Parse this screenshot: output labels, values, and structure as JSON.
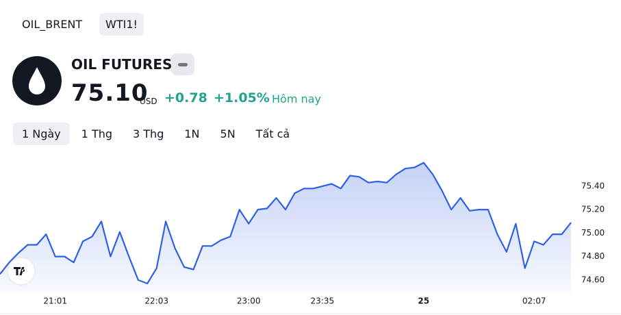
{
  "tabs": [
    "OIL_BRENT",
    "WTI1!"
  ],
  "header": {
    "name": "OIL FUTURES",
    "price": "75.10",
    "currency": "USD",
    "change": "+0.78",
    "change_percent": "+1.05%",
    "period": "Hôm nay"
  },
  "ranges": [
    "1 Ngày",
    "1 Thg",
    "3 Thg",
    "1N",
    "5N",
    "Tất cả"
  ],
  "chart_data": {
    "type": "line",
    "categories": [
      null,
      null,
      null,
      null,
      null,
      null,
      "21:01",
      null,
      null,
      null,
      null,
      null,
      null,
      null,
      null,
      null,
      null,
      "22:03",
      null,
      null,
      null,
      null,
      null,
      null,
      null,
      null,
      null,
      "23:00",
      null,
      null,
      null,
      null,
      null,
      null,
      null,
      "23:35",
      null,
      null,
      null,
      null,
      null,
      null,
      null,
      null,
      null,
      null,
      "25",
      null,
      null,
      null,
      null,
      null,
      null,
      null,
      null,
      null,
      null,
      null,
      "02:07",
      null,
      null,
      null,
      null
    ],
    "series": [
      {
        "color": "#2f5fe3",
        "values": [
          74.65,
          74.75,
          74.83,
          74.9,
          74.9,
          74.99,
          74.8,
          74.8,
          74.75,
          74.93,
          74.97,
          75.1,
          74.8,
          75.01,
          74.8,
          74.6,
          74.57,
          74.7,
          75.1,
          74.87,
          74.71,
          74.69,
          74.89,
          74.89,
          74.94,
          74.97,
          75.2,
          75.08,
          75.2,
          75.21,
          75.3,
          75.2,
          75.34,
          75.38,
          75.38,
          75.4,
          75.42,
          75.38,
          75.49,
          75.48,
          75.43,
          75.44,
          75.43,
          75.5,
          75.55,
          75.56,
          75.6,
          75.5,
          75.36,
          75.2,
          75.3,
          75.19,
          75.2,
          75.2,
          74.99,
          74.84,
          75.08,
          74.7,
          74.93,
          74.9,
          74.99,
          74.99,
          75.09
        ]
      }
    ],
    "ylim": [
      74.5,
      75.7
    ],
    "yticks": [
      {
        "value": 74.6,
        "label": "74.60"
      },
      {
        "value": 74.8,
        "label": "74.80"
      },
      {
        "value": 75.0,
        "label": "75.00"
      },
      {
        "value": 75.2,
        "label": "75.20"
      },
      {
        "value": 75.4,
        "label": "75.40"
      }
    ],
    "grid": false
  }
}
